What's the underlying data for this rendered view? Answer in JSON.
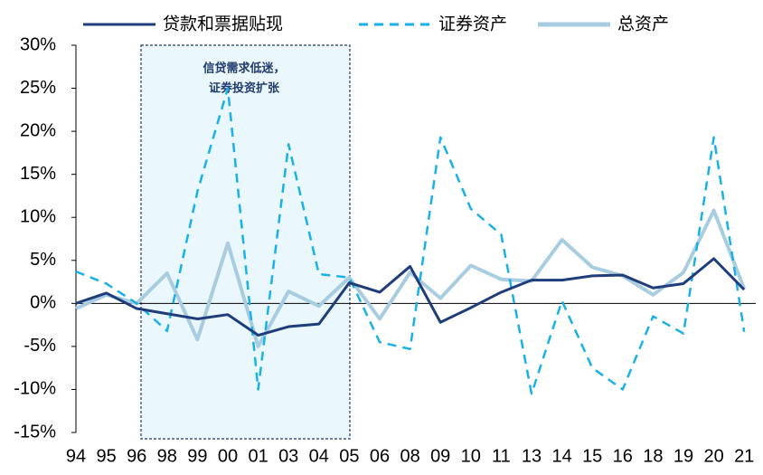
{
  "chart_data": {
    "type": "line",
    "categories": [
      "94",
      "95",
      "96",
      "98",
      "99",
      "00",
      "01",
      "03",
      "04",
      "05",
      "06",
      "08",
      "09",
      "10",
      "11",
      "13",
      "14",
      "15",
      "16",
      "18",
      "19",
      "20",
      "21"
    ],
    "series": [
      {
        "name": "贷款和票据贴现",
        "color": "#1f3d7a",
        "dash": false,
        "values": [
          0,
          1.2,
          -0.6,
          -1.2,
          -1.8,
          -1.3,
          -3.7,
          -2.7,
          -2.4,
          2.4,
          1.3,
          4.3,
          -2.2,
          -0.5,
          1.3,
          2.7,
          2.7,
          3.2,
          3.3,
          1.8,
          2.3,
          5.2,
          1.6
        ]
      },
      {
        "name": "证券资产",
        "color": "#1ab0e8",
        "dash": true,
        "values": [
          3.7,
          2.3,
          0,
          -3.2,
          13,
          25,
          -10,
          18.5,
          3.4,
          3,
          -4.5,
          -5.3,
          19.3,
          11,
          8,
          -10.5,
          0.3,
          -7.5,
          -10,
          -1.5,
          -3.5,
          19.3,
          -3.3
        ]
      },
      {
        "name": "总资产",
        "color": "#a8cde0",
        "dash": false,
        "values": [
          -0.6,
          1,
          0,
          3.5,
          -4.2,
          7,
          -5,
          1.4,
          -0.3,
          3,
          -1.8,
          3.6,
          0.6,
          4.4,
          2.8,
          2.6,
          7.4,
          4.2,
          3.2,
          1,
          3.6,
          10.8,
          1.7
        ]
      }
    ],
    "ylim": [
      -15,
      30
    ],
    "yticks": [
      {
        "value": -15,
        "label": "-15%"
      },
      {
        "value": -10,
        "label": "-10%"
      },
      {
        "value": -5,
        "label": "-5%"
      },
      {
        "value": 0,
        "label": "0%"
      },
      {
        "value": 5,
        "label": "5%"
      },
      {
        "value": 10,
        "label": "10%"
      },
      {
        "value": 15,
        "label": "15%"
      },
      {
        "value": 20,
        "label": "20%"
      },
      {
        "value": 25,
        "label": "25%"
      },
      {
        "value": 30,
        "label": "30%"
      }
    ],
    "annotations": [
      "信贷需求低迷，",
      "证券投资扩张"
    ]
  }
}
